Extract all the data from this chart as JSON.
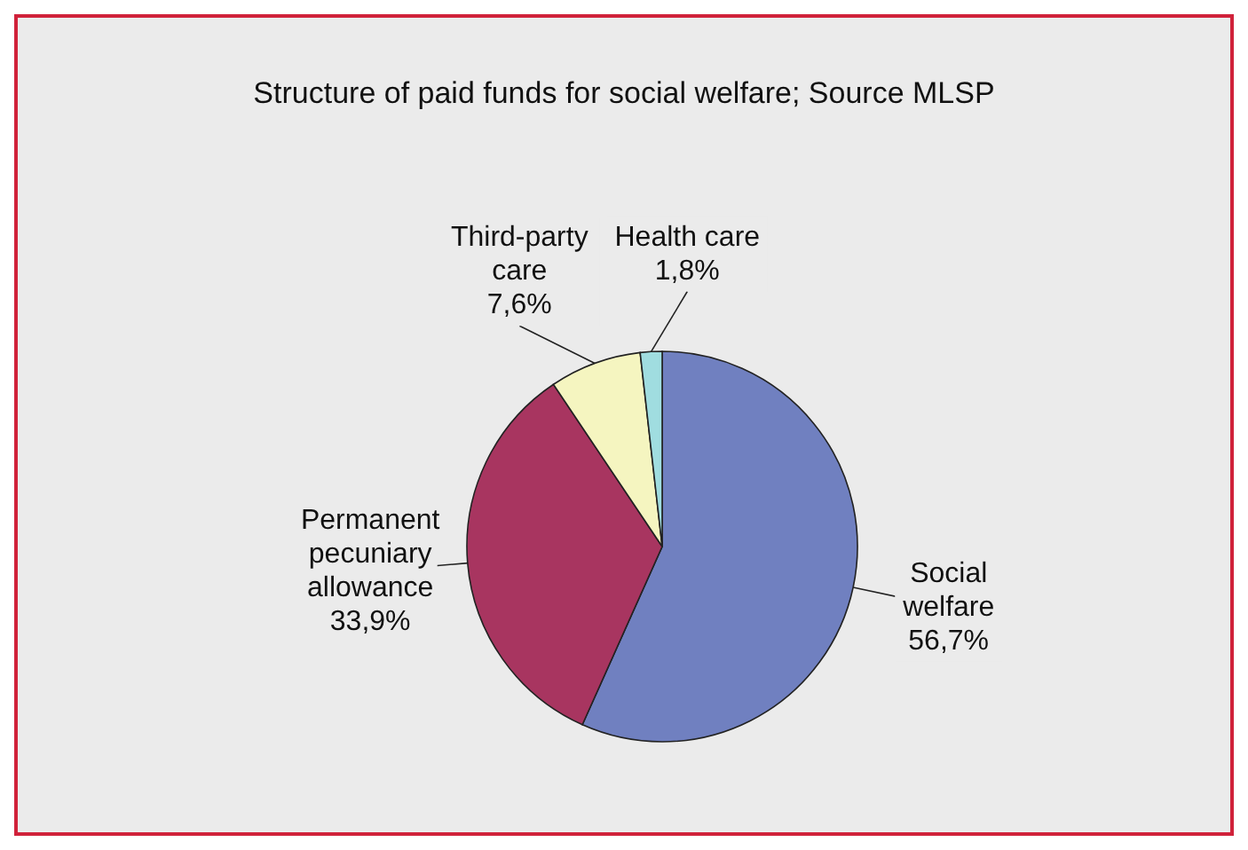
{
  "chart_data": {
    "type": "pie",
    "title": "Structure of paid funds for social welfare; Source MLSP",
    "categories": [
      "Social welfare",
      "Permanent pecuniary allowance",
      "Third-party care",
      "Health care"
    ],
    "values": [
      56.7,
      33.9,
      7.6,
      1.8
    ],
    "value_labels": [
      "56,7%",
      "33,9%",
      "7,6%",
      "1,8%"
    ],
    "colors": [
      "#7080c0",
      "#a83560",
      "#f5f5c0",
      "#a0dde0"
    ],
    "legend": false
  }
}
